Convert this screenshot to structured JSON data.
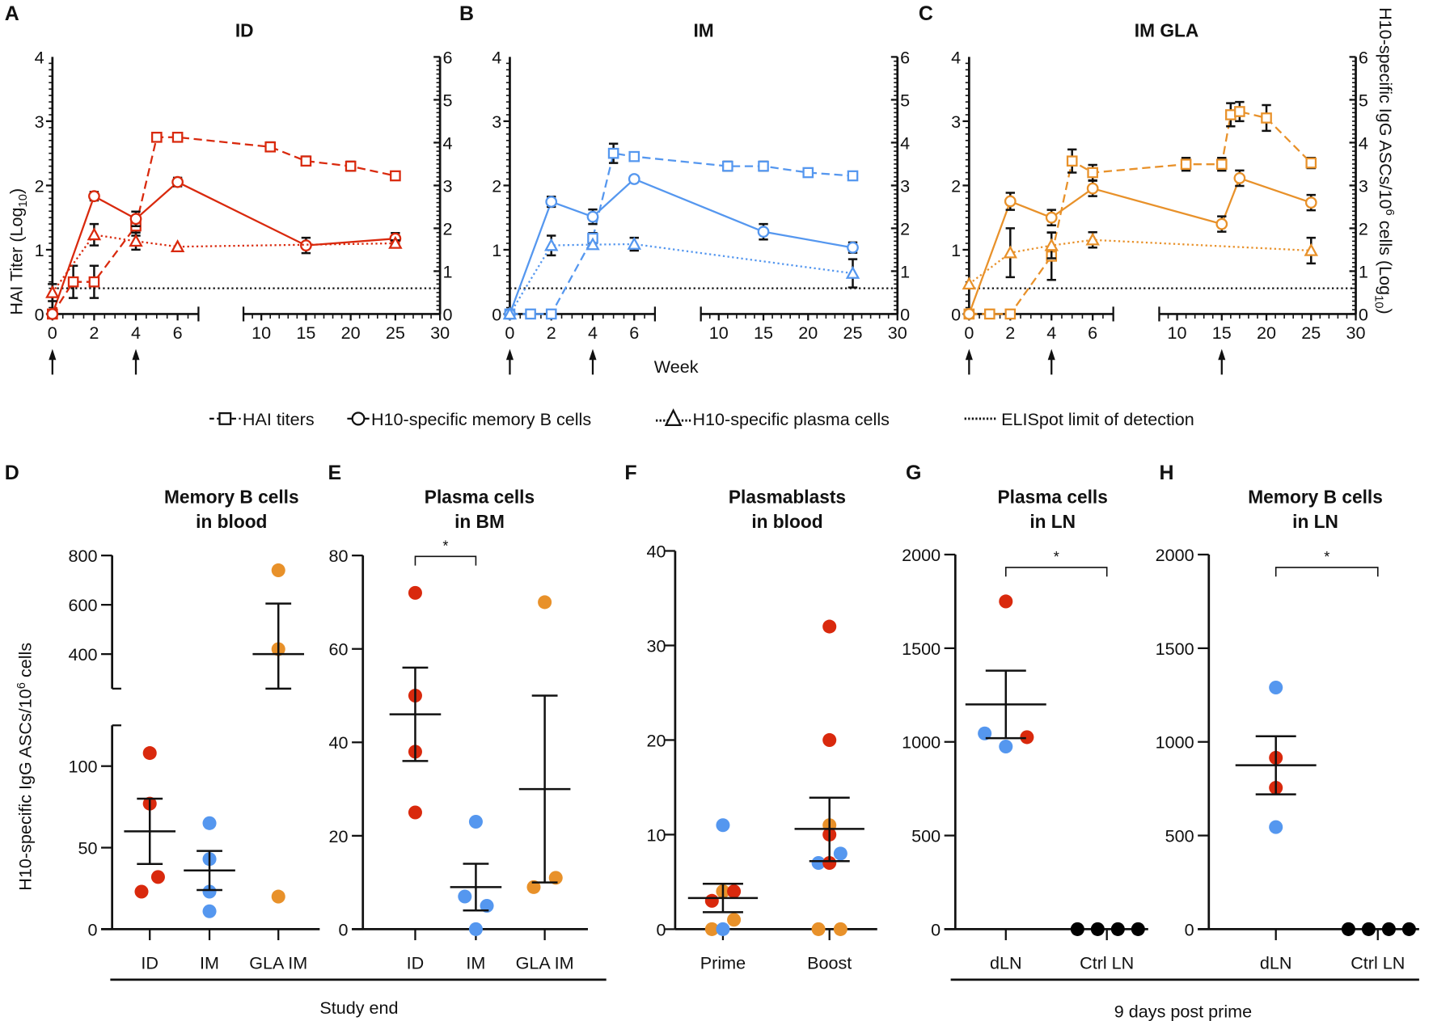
{
  "colors": {
    "ID": "#d9290d",
    "IM": "#5597ef",
    "GLA": "#e8912a",
    "ctrl": "#000000"
  },
  "legend": {
    "hai": "HAI titers",
    "memory": "H10-specific memory B cells",
    "plasma": "H10-specific plasma cells",
    "lod": "ELISpot limit of detection"
  },
  "shared": {
    "left_ylabel": "HAI Titer (Log",
    "left_ylabel_sub": "10",
    "right_ylabel": "H10-specific IgG ASCs/10",
    "right_ylabel_sup": "6",
    "right_ylabel_tail": " cells (Log",
    "right_ylabel_sub": "10",
    "xlabel": "Week",
    "bottom_ylabel": "H10-specific IgG ASCs/10",
    "bottom_ylabel_sup": "6",
    "bottom_ylabel_tail": " cells",
    "study_end": "Study end",
    "post_prime": "9 days post prime"
  },
  "chart_data": [
    {
      "panel": "A",
      "title": "ID",
      "type": "line",
      "color_key": "ID",
      "xlabel": "Week",
      "x_segments": [
        [
          0,
          7
        ],
        [
          8,
          30
        ]
      ],
      "x_ticks_seg1": [
        0,
        2,
        4,
        6
      ],
      "x_ticks_seg2": [
        10,
        15,
        20,
        25,
        30
      ],
      "left_ylim": [
        0,
        4
      ],
      "left_yticks": [
        0,
        1,
        2,
        3,
        4
      ],
      "right_ylim": [
        0,
        6
      ],
      "right_yticks": [
        0,
        1,
        2,
        3,
        4,
        5,
        6
      ],
      "lod_right": 0.6,
      "immunization_weeks": [
        0,
        4
      ],
      "series": [
        {
          "name": "HAI titers",
          "axis": "left",
          "marker": "square",
          "dash": "dashed",
          "points": [
            [
              0,
              0,
              0
            ],
            [
              1,
              0.5,
              0.25
            ],
            [
              2,
              0.5,
              0.25
            ],
            [
              4,
              1.37,
              0.15
            ],
            [
              5,
              2.75,
              0
            ],
            [
              6,
              2.75,
              0
            ],
            [
              11,
              2.6,
              0.07
            ],
            [
              15,
              2.38,
              0.07
            ],
            [
              20,
              2.3,
              0.07
            ],
            [
              25,
              2.15,
              0
            ]
          ]
        },
        {
          "name": "H10-specific memory B cells",
          "axis": "right",
          "marker": "circle",
          "dash": "solid",
          "points": [
            [
              0,
              0,
              0
            ],
            [
              2,
              2.75,
              0.1
            ],
            [
              4,
              2.22,
              0.17
            ],
            [
              6,
              3.08,
              0.1
            ],
            [
              15,
              1.6,
              0.18
            ],
            [
              25,
              1.76,
              0.13
            ]
          ]
        },
        {
          "name": "H10-specific plasma cells",
          "axis": "right",
          "marker": "triangle",
          "dash": "dotted",
          "points": [
            [
              0,
              0.5,
              0.2
            ],
            [
              2,
              1.85,
              0.25
            ],
            [
              4,
              1.7,
              0.2
            ],
            [
              6,
              1.57,
              0
            ],
            [
              25,
              1.65,
              0.07
            ]
          ]
        }
      ]
    },
    {
      "panel": "B",
      "title": "IM",
      "type": "line",
      "color_key": "IM",
      "xlabel": "Week",
      "x_segments": [
        [
          0,
          7
        ],
        [
          8,
          30
        ]
      ],
      "x_ticks_seg1": [
        0,
        2,
        4,
        6
      ],
      "x_ticks_seg2": [
        10,
        15,
        20,
        25,
        30
      ],
      "left_ylim": [
        0,
        4
      ],
      "left_yticks": [
        0,
        1,
        2,
        3,
        4
      ],
      "right_ylim": [
        0,
        6
      ],
      "right_yticks": [
        0,
        1,
        2,
        3,
        4,
        5,
        6
      ],
      "lod_right": 0.6,
      "immunization_weeks": [
        0,
        4
      ],
      "series": [
        {
          "name": "HAI titers",
          "axis": "left",
          "marker": "square",
          "dash": "dashed",
          "points": [
            [
              0,
              0,
              0
            ],
            [
              1,
              0,
              0
            ],
            [
              2,
              0,
              0
            ],
            [
              4,
              1.18,
              0.08
            ],
            [
              5,
              2.5,
              0.15
            ],
            [
              6,
              2.45,
              0
            ],
            [
              11,
              2.3,
              0.07
            ],
            [
              15,
              2.3,
              0.07
            ],
            [
              20,
              2.2,
              0
            ],
            [
              25,
              2.15,
              0
            ]
          ]
        },
        {
          "name": "H10-specific memory B cells",
          "axis": "right",
          "marker": "circle",
          "dash": "solid",
          "points": [
            [
              0,
              0,
              0
            ],
            [
              2,
              2.62,
              0.12
            ],
            [
              4,
              2.27,
              0.17
            ],
            [
              6,
              3.15,
              0.07
            ],
            [
              15,
              1.92,
              0.18
            ],
            [
              25,
              1.55,
              0.12
            ]
          ]
        },
        {
          "name": "H10-specific plasma cells",
          "axis": "right",
          "marker": "triangle",
          "dash": "dotted",
          "points": [
            [
              0,
              0,
              0
            ],
            [
              2,
              1.6,
              0.23
            ],
            [
              4,
              1.62,
              0
            ],
            [
              6,
              1.63,
              0.15
            ],
            [
              25,
              0.95,
              0.33
            ]
          ]
        }
      ]
    },
    {
      "panel": "C",
      "title": "IM GLA",
      "type": "line",
      "color_key": "GLA",
      "xlabel": "Week",
      "x_segments": [
        [
          0,
          7
        ],
        [
          8,
          30
        ]
      ],
      "x_ticks_seg1": [
        0,
        2,
        4,
        6
      ],
      "x_ticks_seg2": [
        10,
        15,
        20,
        25,
        30
      ],
      "left_ylim": [
        0,
        4
      ],
      "left_yticks": [
        0,
        1,
        2,
        3,
        4
      ],
      "right_ylim": [
        0,
        6
      ],
      "right_yticks": [
        0,
        1,
        2,
        3,
        4,
        5,
        6
      ],
      "lod_right": 0.6,
      "immunization_weeks": [
        0,
        4,
        15
      ],
      "series": [
        {
          "name": "HAI titers",
          "axis": "left",
          "marker": "square",
          "dash": "dashed",
          "points": [
            [
              0,
              0,
              0
            ],
            [
              1,
              0,
              0
            ],
            [
              2,
              0,
              0
            ],
            [
              4,
              0.9,
              0.37
            ],
            [
              5,
              2.38,
              0.18
            ],
            [
              6,
              2.2,
              0.12
            ],
            [
              11,
              2.33,
              0.1
            ],
            [
              15,
              2.33,
              0.1
            ],
            [
              16,
              3.1,
              0.18
            ],
            [
              17,
              3.15,
              0.15
            ],
            [
              20,
              3.05,
              0.2
            ],
            [
              25,
              2.35,
              0.08
            ]
          ]
        },
        {
          "name": "H10-specific memory B cells",
          "axis": "right",
          "marker": "circle",
          "dash": "solid",
          "points": [
            [
              0,
              0,
              0
            ],
            [
              2,
              2.63,
              0.2
            ],
            [
              4,
              2.25,
              0.18
            ],
            [
              6,
              2.93,
              0.18
            ],
            [
              15,
              2.1,
              0.18
            ],
            [
              17,
              3.17,
              0.18
            ],
            [
              25,
              2.6,
              0.18
            ]
          ]
        },
        {
          "name": "H10-specific plasma cells",
          "axis": "right",
          "marker": "triangle",
          "dash": "dotted",
          "points": [
            [
              0,
              0.7,
              0
            ],
            [
              2,
              1.43,
              0.57
            ],
            [
              4,
              1.6,
              0.3
            ],
            [
              6,
              1.73,
              0.18
            ],
            [
              25,
              1.48,
              0.3
            ]
          ]
        }
      ]
    },
    {
      "panel": "D",
      "title_line1": "Memory B cells",
      "title_line2": "in blood",
      "type": "scatter",
      "ylabel": "H10-specific IgG ASCs/10^6 cells",
      "ylim_lower": [
        0,
        125
      ],
      "yticks_lower": [
        0,
        50,
        100
      ],
      "ylim_upper": [
        260,
        800
      ],
      "yticks_upper": [
        400,
        600,
        800
      ],
      "categories": [
        "ID",
        "IM",
        "GLA IM"
      ],
      "groups": [
        {
          "category": "ID",
          "color_key": "ID",
          "values": [
            108,
            77,
            23,
            32
          ],
          "mean": 60,
          "sem": [
            40,
            80
          ]
        },
        {
          "category": "IM",
          "color_key": "IM",
          "values": [
            65,
            43,
            23,
            11
          ],
          "mean": 36,
          "sem": [
            24,
            48
          ]
        },
        {
          "category": "GLA IM",
          "color_key": "GLA",
          "values": [
            740,
            420,
            20
          ],
          "mean": 400,
          "sem": [
            260,
            605
          ]
        }
      ]
    },
    {
      "panel": "E",
      "title_line1": "Plasma cells",
      "title_line2": "in BM",
      "type": "scatter",
      "ylim": [
        0,
        80
      ],
      "yticks": [
        0,
        20,
        40,
        60,
        80
      ],
      "categories": [
        "ID",
        "IM",
        "GLA IM"
      ],
      "significance": {
        "from": "ID",
        "to": "IM",
        "label": "*"
      },
      "groups": [
        {
          "category": "ID",
          "color_key": "ID",
          "values": [
            72,
            50,
            38,
            25
          ],
          "mean": 46,
          "sem": [
            36,
            56
          ]
        },
        {
          "category": "IM",
          "color_key": "IM",
          "values": [
            23,
            7,
            5,
            0
          ],
          "mean": 9,
          "sem": [
            4,
            14
          ]
        },
        {
          "category": "GLA IM",
          "color_key": "GLA",
          "values": [
            70,
            11,
            9
          ],
          "mean": 30,
          "sem": [
            10,
            50
          ]
        }
      ]
    },
    {
      "panel": "F",
      "title_line1": "Plasmablasts",
      "title_line2": "in blood",
      "type": "scatter",
      "ylim": [
        0,
        40
      ],
      "yticks": [
        0,
        10,
        20,
        30,
        40
      ],
      "categories": [
        "Prime",
        "Boost"
      ],
      "groups": [
        {
          "category": "Prime",
          "points": [
            [
              "IM",
              11
            ],
            [
              "GLA",
              4
            ],
            [
              "ID",
              4
            ],
            [
              "ID",
              3
            ],
            [
              "GLA",
              1
            ],
            [
              "GLA",
              0
            ],
            [
              "IM",
              0
            ]
          ],
          "mean": 3.3,
          "sem": [
            1.8,
            4.8
          ]
        },
        {
          "category": "Boost",
          "points": [
            [
              "ID",
              32
            ],
            [
              "ID",
              20
            ],
            [
              "GLA",
              11
            ],
            [
              "ID",
              10
            ],
            [
              "IM",
              8
            ],
            [
              "IM",
              7
            ],
            [
              "ID",
              7
            ],
            [
              "GLA",
              0
            ],
            [
              "GLA",
              0
            ]
          ],
          "mean": 10.6,
          "sem": [
            7.2,
            13.9
          ]
        }
      ]
    },
    {
      "panel": "G",
      "title_line1": "Plasma cells",
      "title_line2": "in LN",
      "type": "scatter",
      "ylim": [
        0,
        2000
      ],
      "yticks": [
        0,
        500,
        1000,
        1500,
        2000
      ],
      "categories": [
        "dLN",
        "Ctrl LN"
      ],
      "significance": {
        "from": "dLN",
        "to": "Ctrl LN",
        "label": "*"
      },
      "groups": [
        {
          "category": "dLN",
          "points": [
            [
              "ID",
              1750
            ],
            [
              "IM",
              1045
            ],
            [
              "ID",
              1025
            ],
            [
              "IM",
              975
            ]
          ],
          "mean": 1200,
          "sem": [
            1020,
            1380
          ]
        },
        {
          "category": "Ctrl LN",
          "points": [
            [
              "ctrl",
              0
            ],
            [
              "ctrl",
              0
            ],
            [
              "ctrl",
              0
            ],
            [
              "ctrl",
              0
            ]
          ],
          "mean": 0,
          "sem": [
            0,
            0
          ]
        }
      ]
    },
    {
      "panel": "H",
      "title_line1": "Memory B cells",
      "title_line2": "in LN",
      "type": "scatter",
      "ylim": [
        0,
        2000
      ],
      "yticks": [
        0,
        500,
        1000,
        1500,
        2000
      ],
      "categories": [
        "dLN",
        "Ctrl LN"
      ],
      "significance": {
        "from": "dLN",
        "to": "Ctrl LN",
        "label": "*"
      },
      "groups": [
        {
          "category": "dLN",
          "points": [
            [
              "IM",
              1290
            ],
            [
              "ID",
              915
            ],
            [
              "ID",
              755
            ],
            [
              "IM",
              545
            ]
          ],
          "mean": 875,
          "sem": [
            720,
            1030
          ]
        },
        {
          "category": "Ctrl LN",
          "points": [
            [
              "ctrl",
              0
            ],
            [
              "ctrl",
              0
            ],
            [
              "ctrl",
              0
            ],
            [
              "ctrl",
              0
            ]
          ],
          "mean": 0,
          "sem": [
            0,
            0
          ]
        }
      ]
    }
  ]
}
